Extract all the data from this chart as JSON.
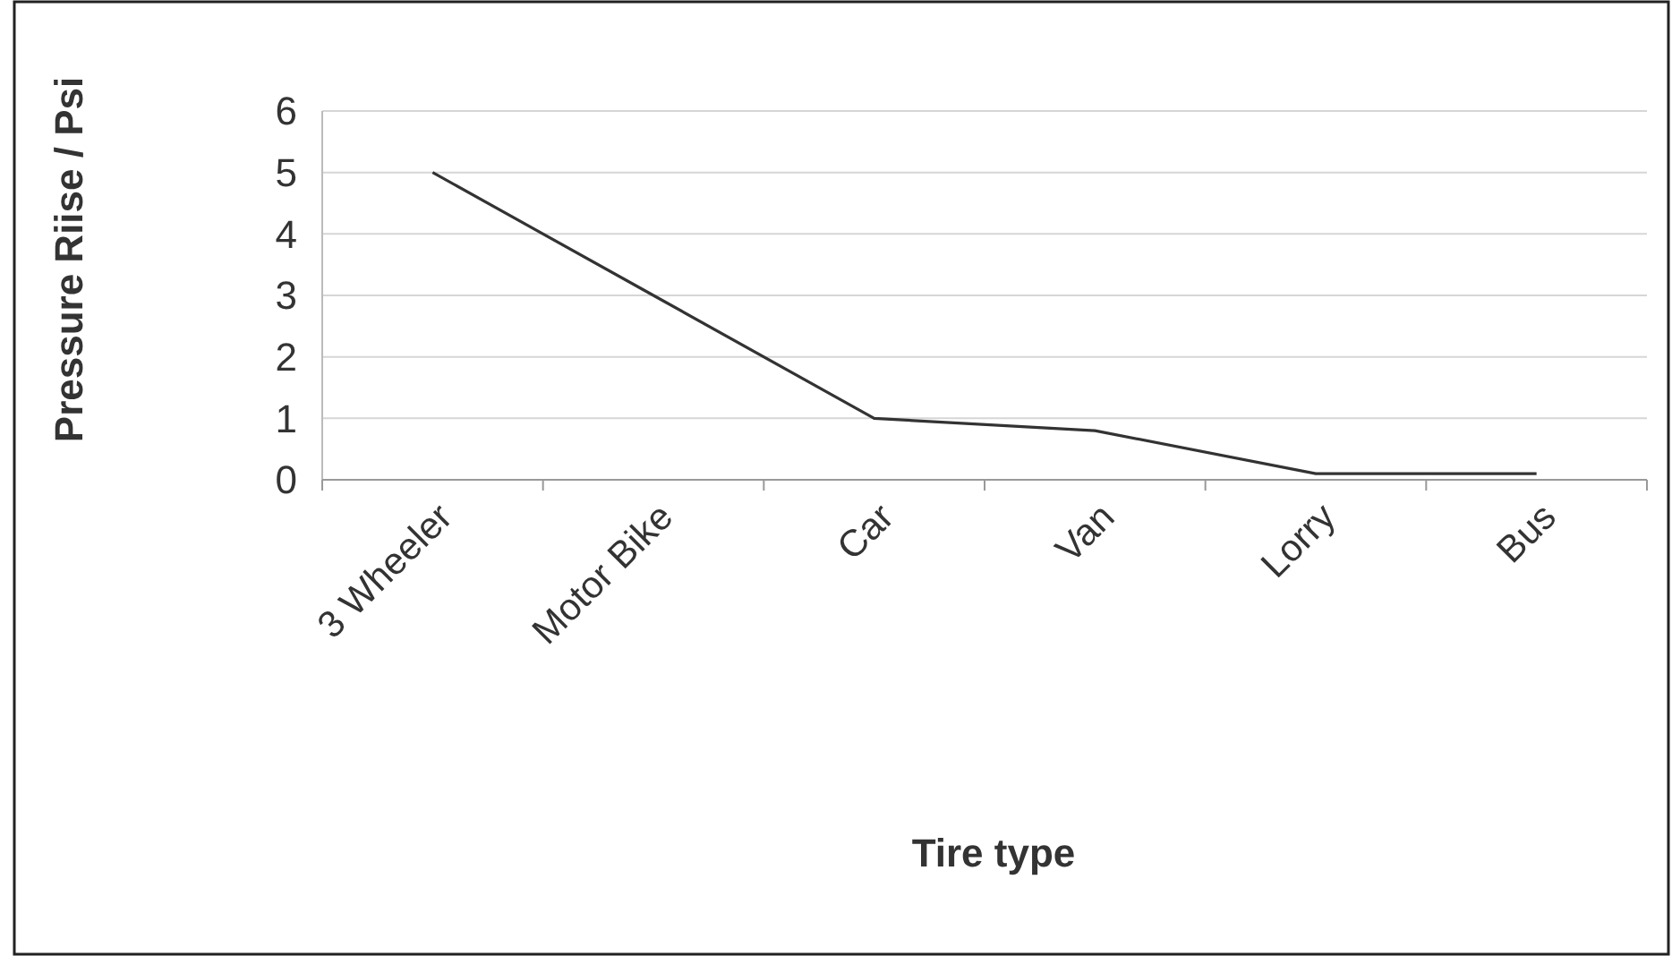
{
  "chart_data": {
    "type": "line",
    "xlabel": "Tire type",
    "ylabel": "Pressure Riise / Psi",
    "categories": [
      "3 Wheeler",
      "Motor Bike",
      "Car",
      "Van",
      "Lorry",
      "Bus"
    ],
    "series": [
      {
        "color": "#333333",
        "values": [
          5,
          3,
          1,
          0.8,
          0.1,
          0.1
        ]
      }
    ],
    "ylim": [
      0,
      6
    ],
    "yticks": [
      0,
      1,
      2,
      3,
      4,
      5,
      6
    ],
    "grid": "y",
    "marker": "none",
    "line_style": "solid",
    "legend": false
  }
}
